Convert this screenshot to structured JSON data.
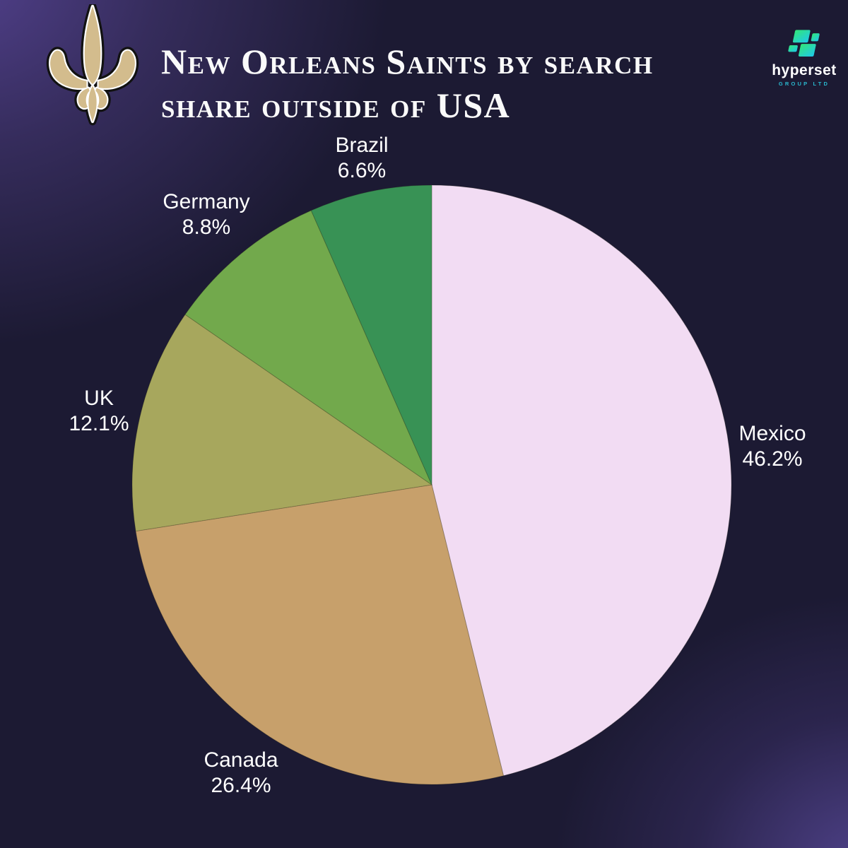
{
  "page": {
    "background_color": "#1c1a33",
    "accent_purple": "#4a3b7d"
  },
  "header": {
    "title_lines": [
      "New Orleans Saints by search",
      "share outside of USA"
    ],
    "team_logo": "new-orleans-saints-fleur-de-lis",
    "logo_gold": "#d3bc8d",
    "brand": {
      "name": "hyperset",
      "subtitle": "GROUP LTD",
      "accent_green": "#32e678",
      "accent_cyan": "#1fc9ea",
      "subtitle_color": "#2ab9cf"
    }
  },
  "chart_data": {
    "type": "pie",
    "title": "New Orleans Saints by search share outside of USA",
    "start_angle_deg": 0,
    "direction": "clockwise",
    "legend_position": "labels-outside",
    "slices": [
      {
        "label": "Mexico",
        "value": 46.2,
        "display": "46.2%",
        "color": "#f2dcf3"
      },
      {
        "label": "Canada",
        "value": 26.4,
        "display": "26.4%",
        "color": "#c7a06b"
      },
      {
        "label": "UK",
        "value": 12.1,
        "display": "12.1%",
        "color": "#a7a75d"
      },
      {
        "label": "Germany",
        "value": 8.8,
        "display": "8.8%",
        "color": "#72a94c"
      },
      {
        "label": "Brazil",
        "value": 6.6,
        "display": "6.6%",
        "color": "#389255"
      }
    ]
  }
}
